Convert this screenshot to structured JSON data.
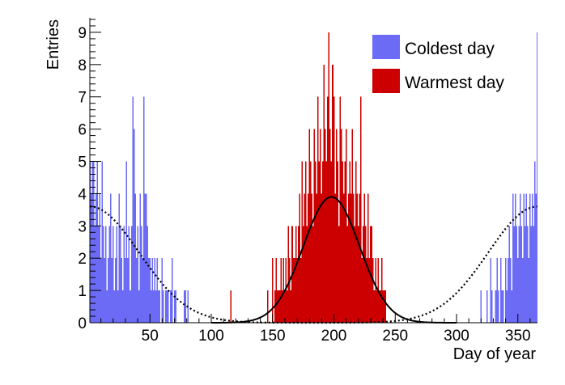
{
  "chart_data": {
    "type": "bar",
    "title": "",
    "xlabel": "Day of year",
    "ylabel": "Entries",
    "xlim": [
      1,
      366
    ],
    "ylim": [
      0,
      9.45
    ],
    "x_ticks": [
      50,
      100,
      150,
      200,
      250,
      300,
      350
    ],
    "y_ticks": [
      0,
      1,
      2,
      3,
      4,
      5,
      6,
      7,
      8,
      9
    ],
    "grid": false,
    "legend_placement": "top-right",
    "series": [
      {
        "name": "Coldest day",
        "color": "#6b6bf5",
        "bins": [
          [
            1,
            5
          ],
          [
            2,
            4
          ],
          [
            3,
            5
          ],
          [
            4,
            5
          ],
          [
            5,
            3
          ],
          [
            6,
            4
          ],
          [
            7,
            5
          ],
          [
            8,
            3
          ],
          [
            9,
            4
          ],
          [
            10,
            2
          ],
          [
            11,
            5
          ],
          [
            12,
            3
          ],
          [
            13,
            2
          ],
          [
            14,
            3
          ],
          [
            15,
            1
          ],
          [
            16,
            2
          ],
          [
            17,
            3
          ],
          [
            18,
            4
          ],
          [
            19,
            2
          ],
          [
            20,
            3
          ],
          [
            21,
            1
          ],
          [
            22,
            2
          ],
          [
            23,
            3
          ],
          [
            24,
            1
          ],
          [
            25,
            4
          ],
          [
            26,
            3
          ],
          [
            27,
            2
          ],
          [
            28,
            1
          ],
          [
            29,
            3
          ],
          [
            30,
            2
          ],
          [
            31,
            5
          ],
          [
            32,
            2
          ],
          [
            33,
            3
          ],
          [
            34,
            1
          ],
          [
            35,
            3
          ],
          [
            36,
            7
          ],
          [
            37,
            6
          ],
          [
            38,
            4
          ],
          [
            39,
            2
          ],
          [
            40,
            3
          ],
          [
            41,
            1
          ],
          [
            42,
            4
          ],
          [
            43,
            3
          ],
          [
            44,
            2
          ],
          [
            45,
            7
          ],
          [
            46,
            4
          ],
          [
            47,
            4
          ],
          [
            48,
            3
          ],
          [
            49,
            2
          ],
          [
            50,
            2
          ],
          [
            51,
            1
          ],
          [
            52,
            2
          ],
          [
            53,
            1
          ],
          [
            54,
            2
          ],
          [
            55,
            1
          ],
          [
            56,
            2
          ],
          [
            57,
            1
          ],
          [
            58,
            1
          ],
          [
            59,
            0
          ],
          [
            60,
            2
          ],
          [
            61,
            1
          ],
          [
            62,
            0
          ],
          [
            63,
            1
          ],
          [
            64,
            1
          ],
          [
            65,
            1
          ],
          [
            66,
            0
          ],
          [
            67,
            1
          ],
          [
            68,
            2
          ],
          [
            69,
            0
          ],
          [
            70,
            1
          ],
          [
            71,
            1
          ],
          [
            72,
            0
          ],
          [
            73,
            0
          ],
          [
            74,
            0
          ],
          [
            75,
            0
          ],
          [
            76,
            0
          ],
          [
            77,
            0
          ],
          [
            78,
            1
          ],
          [
            79,
            1
          ],
          [
            80,
            0
          ],
          [
            81,
            1
          ],
          [
            320,
            1
          ],
          [
            321,
            0
          ],
          [
            322,
            0
          ],
          [
            323,
            0
          ],
          [
            324,
            0
          ],
          [
            325,
            1
          ],
          [
            326,
            0
          ],
          [
            327,
            0
          ],
          [
            328,
            2
          ],
          [
            329,
            1
          ],
          [
            330,
            0
          ],
          [
            331,
            0
          ],
          [
            332,
            1
          ],
          [
            333,
            2
          ],
          [
            334,
            1
          ],
          [
            335,
            0
          ],
          [
            336,
            2
          ],
          [
            337,
            1
          ],
          [
            338,
            1
          ],
          [
            339,
            0
          ],
          [
            340,
            2
          ],
          [
            341,
            1
          ],
          [
            342,
            2
          ],
          [
            343,
            3
          ],
          [
            344,
            2
          ],
          [
            345,
            1
          ],
          [
            346,
            4
          ],
          [
            347,
            3
          ],
          [
            348,
            4
          ],
          [
            349,
            3
          ],
          [
            350,
            2
          ],
          [
            351,
            3
          ],
          [
            352,
            4
          ],
          [
            353,
            3
          ],
          [
            354,
            2
          ],
          [
            355,
            4
          ],
          [
            356,
            3
          ],
          [
            357,
            4
          ],
          [
            358,
            3
          ],
          [
            359,
            2
          ],
          [
            360,
            4
          ],
          [
            361,
            3
          ],
          [
            362,
            4
          ],
          [
            363,
            3
          ],
          [
            364,
            5
          ],
          [
            365,
            4
          ],
          [
            366,
            9
          ]
        ]
      },
      {
        "name": "Warmest day",
        "color": "#cc0000",
        "bins": [
          [
            116,
            1
          ],
          [
            137,
            0
          ],
          [
            146,
            1
          ],
          [
            150,
            2
          ],
          [
            152,
            1
          ],
          [
            153,
            2
          ],
          [
            154,
            1
          ],
          [
            155,
            1
          ],
          [
            156,
            1
          ],
          [
            157,
            2
          ],
          [
            158,
            1
          ],
          [
            159,
            2
          ],
          [
            160,
            1
          ],
          [
            161,
            2
          ],
          [
            162,
            1
          ],
          [
            163,
            3
          ],
          [
            164,
            2
          ],
          [
            165,
            1
          ],
          [
            166,
            3
          ],
          [
            167,
            2
          ],
          [
            168,
            2
          ],
          [
            169,
            3
          ],
          [
            170,
            2
          ],
          [
            171,
            3
          ],
          [
            172,
            4
          ],
          [
            173,
            2
          ],
          [
            174,
            5
          ],
          [
            175,
            3
          ],
          [
            176,
            4
          ],
          [
            177,
            5
          ],
          [
            178,
            3
          ],
          [
            179,
            4
          ],
          [
            180,
            6
          ],
          [
            181,
            5
          ],
          [
            182,
            4
          ],
          [
            183,
            3
          ],
          [
            184,
            6
          ],
          [
            185,
            5
          ],
          [
            186,
            4
          ],
          [
            187,
            7
          ],
          [
            188,
            5
          ],
          [
            189,
            6
          ],
          [
            190,
            4
          ],
          [
            191,
            5
          ],
          [
            192,
            8
          ],
          [
            193,
            6
          ],
          [
            194,
            5
          ],
          [
            195,
            7
          ],
          [
            196,
            9
          ],
          [
            197,
            6
          ],
          [
            198,
            5
          ],
          [
            199,
            8
          ],
          [
            200,
            7
          ],
          [
            201,
            4
          ],
          [
            202,
            6
          ],
          [
            203,
            5
          ],
          [
            204,
            3
          ],
          [
            205,
            7
          ],
          [
            206,
            6
          ],
          [
            207,
            5
          ],
          [
            208,
            4
          ],
          [
            209,
            5
          ],
          [
            210,
            6
          ],
          [
            211,
            3
          ],
          [
            212,
            4
          ],
          [
            213,
            5
          ],
          [
            214,
            4
          ],
          [
            215,
            6
          ],
          [
            216,
            4
          ],
          [
            217,
            3
          ],
          [
            218,
            5
          ],
          [
            219,
            4
          ],
          [
            220,
            3
          ],
          [
            221,
            4
          ],
          [
            222,
            7
          ],
          [
            223,
            2
          ],
          [
            224,
            3
          ],
          [
            225,
            4
          ],
          [
            226,
            3
          ],
          [
            227,
            2
          ],
          [
            228,
            4
          ],
          [
            229,
            2
          ],
          [
            230,
            3
          ],
          [
            231,
            3
          ],
          [
            232,
            2
          ],
          [
            233,
            1
          ],
          [
            234,
            2
          ],
          [
            235,
            1
          ],
          [
            236,
            2
          ],
          [
            237,
            1
          ],
          [
            238,
            1
          ],
          [
            239,
            2
          ],
          [
            240,
            1
          ],
          [
            241,
            1
          ],
          [
            242,
            1
          ],
          [
            243,
            0
          ],
          [
            245,
            0
          ]
        ]
      }
    ],
    "fits": [
      {
        "series": "Warmest day",
        "shape": "gaussian",
        "style": "solid",
        "color": "#000000",
        "mean": 198,
        "sigma": 23,
        "amplitude": 3.9
      },
      {
        "series": "Coldest day",
        "shape": "periodic gaussian",
        "style": "dotted",
        "color": "#000000",
        "mean": 1,
        "sigma": 40,
        "amplitude": 3.6
      }
    ]
  }
}
